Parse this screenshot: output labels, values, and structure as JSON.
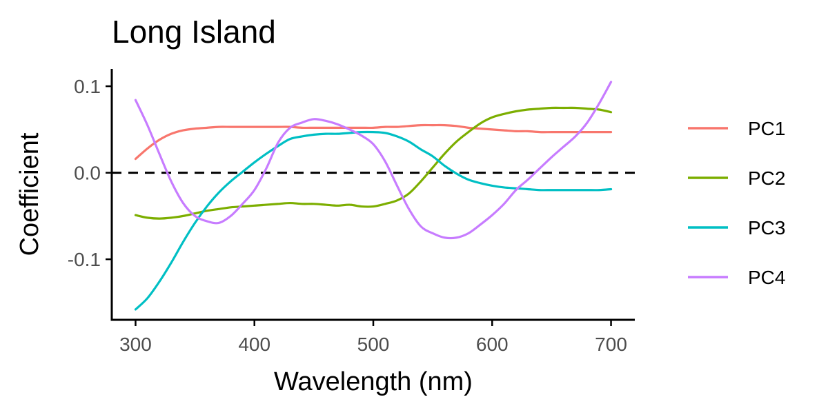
{
  "chart_data": {
    "type": "line",
    "title": "Long Island",
    "xlabel": "Wavelength (nm)",
    "ylabel": "Coefficient",
    "xlim": [
      280,
      720
    ],
    "ylim": [
      -0.17,
      0.12
    ],
    "x_ticks": [
      300,
      400,
      500,
      600,
      700
    ],
    "x_tick_labels": [
      "300",
      "400",
      "500",
      "600",
      "700"
    ],
    "y_ticks": [
      0.1,
      0.0,
      -0.1
    ],
    "y_tick_labels": [
      "0.1",
      "0.0",
      "-0.1"
    ],
    "reference_line": {
      "y": 0,
      "style": "dashed",
      "color": "#000000"
    },
    "grid": false,
    "legend_position": "right",
    "x": [
      300,
      310,
      320,
      330,
      340,
      350,
      360,
      370,
      380,
      390,
      400,
      410,
      420,
      430,
      440,
      450,
      460,
      470,
      480,
      490,
      500,
      510,
      520,
      530,
      540,
      550,
      560,
      570,
      580,
      590,
      600,
      610,
      620,
      630,
      640,
      650,
      660,
      670,
      680,
      690,
      700
    ],
    "series": [
      {
        "name": "PC1",
        "color": "#F8766D",
        "values": [
          0.016,
          0.028,
          0.038,
          0.045,
          0.049,
          0.051,
          0.052,
          0.053,
          0.053,
          0.053,
          0.053,
          0.053,
          0.053,
          0.053,
          0.052,
          0.052,
          0.052,
          0.052,
          0.052,
          0.052,
          0.052,
          0.053,
          0.053,
          0.054,
          0.055,
          0.055,
          0.055,
          0.054,
          0.052,
          0.051,
          0.05,
          0.049,
          0.048,
          0.048,
          0.047,
          0.047,
          0.047,
          0.047,
          0.047,
          0.047,
          0.047
        ]
      },
      {
        "name": "PC2",
        "color": "#7CAE00",
        "values": [
          -0.049,
          -0.052,
          -0.053,
          -0.052,
          -0.05,
          -0.047,
          -0.044,
          -0.042,
          -0.04,
          -0.039,
          -0.038,
          -0.037,
          -0.036,
          -0.035,
          -0.036,
          -0.036,
          -0.037,
          -0.038,
          -0.037,
          -0.039,
          -0.039,
          -0.036,
          -0.032,
          -0.024,
          -0.01,
          0.006,
          0.022,
          0.036,
          0.047,
          0.057,
          0.064,
          0.068,
          0.071,
          0.073,
          0.074,
          0.075,
          0.075,
          0.075,
          0.074,
          0.073,
          0.07
        ]
      },
      {
        "name": "PC3",
        "color": "#00BFC4",
        "values": [
          -0.158,
          -0.145,
          -0.126,
          -0.104,
          -0.08,
          -0.058,
          -0.039,
          -0.023,
          -0.01,
          0.001,
          0.012,
          0.022,
          0.031,
          0.039,
          0.042,
          0.044,
          0.045,
          0.045,
          0.046,
          0.047,
          0.047,
          0.046,
          0.042,
          0.036,
          0.027,
          0.019,
          0.008,
          -0.001,
          -0.008,
          -0.012,
          -0.015,
          -0.017,
          -0.018,
          -0.019,
          -0.02,
          -0.02,
          -0.02,
          -0.02,
          -0.02,
          -0.02,
          -0.019
        ]
      },
      {
        "name": "PC4",
        "color": "#C77CFF",
        "values": [
          0.084,
          0.055,
          0.022,
          -0.01,
          -0.035,
          -0.05,
          -0.056,
          -0.058,
          -0.05,
          -0.036,
          -0.02,
          0.005,
          0.035,
          0.052,
          0.058,
          0.062,
          0.06,
          0.056,
          0.05,
          0.043,
          0.033,
          0.013,
          -0.015,
          -0.042,
          -0.062,
          -0.07,
          -0.075,
          -0.075,
          -0.07,
          -0.06,
          -0.049,
          -0.036,
          -0.02,
          -0.008,
          0.005,
          0.018,
          0.03,
          0.042,
          0.058,
          0.08,
          0.105
        ]
      }
    ]
  }
}
